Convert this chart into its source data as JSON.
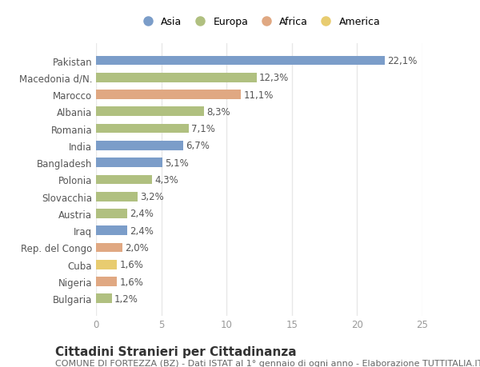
{
  "countries": [
    "Pakistan",
    "Macedonia d/N.",
    "Marocco",
    "Albania",
    "Romania",
    "India",
    "Bangladesh",
    "Polonia",
    "Slovacchia",
    "Austria",
    "Iraq",
    "Rep. del Congo",
    "Cuba",
    "Nigeria",
    "Bulgaria"
  ],
  "values": [
    22.1,
    12.3,
    11.1,
    8.3,
    7.1,
    6.7,
    5.1,
    4.3,
    3.2,
    2.4,
    2.4,
    2.0,
    1.6,
    1.6,
    1.2
  ],
  "labels": [
    "22,1%",
    "12,3%",
    "11,1%",
    "8,3%",
    "7,1%",
    "6,7%",
    "5,1%",
    "4,3%",
    "3,2%",
    "2,4%",
    "2,4%",
    "2,0%",
    "1,6%",
    "1,6%",
    "1,2%"
  ],
  "continents": [
    "Asia",
    "Europa",
    "Africa",
    "Europa",
    "Europa",
    "Asia",
    "Asia",
    "Europa",
    "Europa",
    "Europa",
    "Asia",
    "Africa",
    "America",
    "Africa",
    "Europa"
  ],
  "colors": {
    "Asia": "#7b9dc9",
    "Europa": "#b0c080",
    "Africa": "#e0a882",
    "America": "#e8cc70"
  },
  "background_color": "#ffffff",
  "plot_bg_color": "#ffffff",
  "title": "Cittadini Stranieri per Cittadinanza",
  "subtitle": "COMUNE DI FORTEZZA (BZ) - Dati ISTAT al 1° gennaio di ogni anno - Elaborazione TUTTITALIA.IT",
  "xlim": [
    0,
    25
  ],
  "xticks": [
    0,
    5,
    10,
    15,
    20,
    25
  ],
  "bar_height": 0.55,
  "grid_color": "#e8e8e8",
  "tick_color": "#999999",
  "label_fontsize": 8.5,
  "ytick_fontsize": 8.5,
  "title_fontsize": 11,
  "subtitle_fontsize": 8
}
